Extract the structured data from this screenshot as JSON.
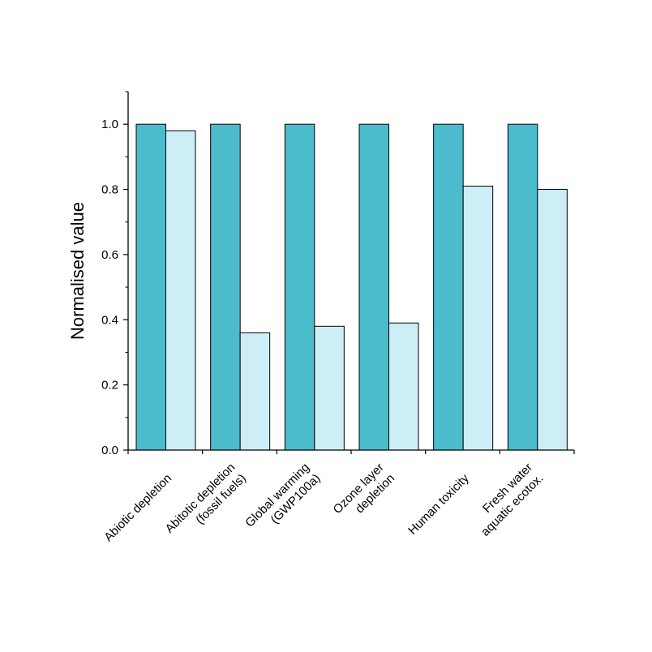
{
  "chart_data": {
    "type": "bar",
    "ylabel": "Normalised value",
    "xlabel": "",
    "ylim": [
      0,
      1.1
    ],
    "yticks": [
      "0.0",
      "0.2",
      "0.4",
      "0.6",
      "0.8",
      "1.0"
    ],
    "ytick_values": [
      0.0,
      0.2,
      0.4,
      0.6,
      0.8,
      1.0
    ],
    "grid": false,
    "legend": "none",
    "categories": [
      [
        "Abiotic depletion"
      ],
      [
        "Abitotic depletion",
        "(fossil fuels)"
      ],
      [
        "Global warming",
        "(GWP100a)"
      ],
      [
        "Ozone layer",
        "depletion"
      ],
      [
        "Human toxicity"
      ],
      [
        "Fresh water",
        "aquatic ecotox."
      ]
    ],
    "series": [
      {
        "color": "#4bbccc",
        "values": [
          1.0,
          1.0,
          1.0,
          1.0,
          1.0,
          1.0
        ]
      },
      {
        "color": "#cdeef6",
        "values": [
          0.98,
          0.36,
          0.38,
          0.39,
          0.81,
          0.8
        ]
      }
    ]
  }
}
